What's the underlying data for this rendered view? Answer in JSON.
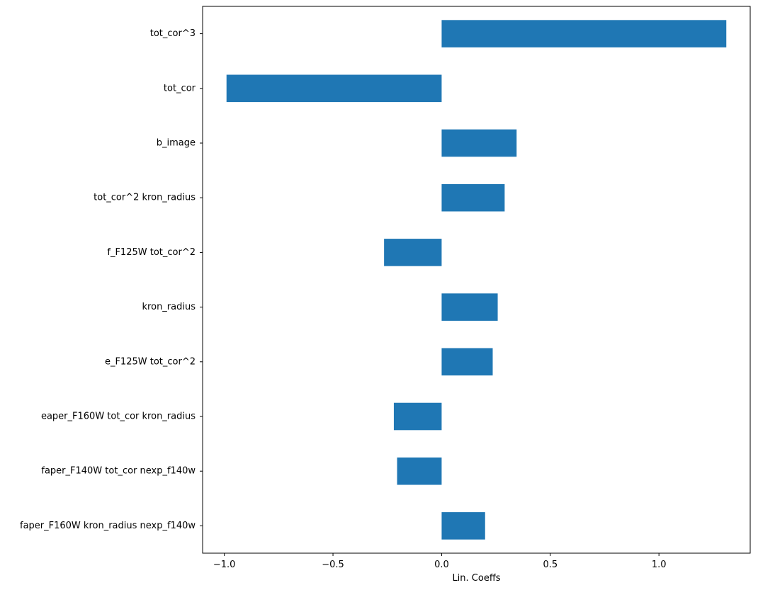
{
  "chart_data": {
    "type": "bar",
    "orientation": "horizontal",
    "categories": [
      "tot_cor^3",
      "tot_cor",
      "b_image",
      "tot_cor^2 kron_radius",
      "f_F125W tot_cor^2",
      "kron_radius",
      "e_F125W tot_cor^2",
      "eaper_F160W tot_cor kron_radius",
      "faper_F140W tot_cor nexp_f140w",
      "faper_F160W kron_radius nexp_f140w"
    ],
    "values": [
      1.31,
      -0.99,
      0.345,
      0.29,
      -0.265,
      0.258,
      0.235,
      -0.22,
      -0.205,
      0.2
    ],
    "xlabel": "Lin. Coeffs",
    "ylabel": "",
    "xlim": [
      -1.1,
      1.42
    ],
    "xticks": [
      -1.0,
      -0.5,
      0.0,
      0.5,
      1.0
    ],
    "xtick_labels": [
      "−1.0",
      "−0.5",
      "0.0",
      "0.5",
      "1.0"
    ],
    "bar_color": "#1f77b4",
    "grid": false,
    "legend": "none"
  }
}
